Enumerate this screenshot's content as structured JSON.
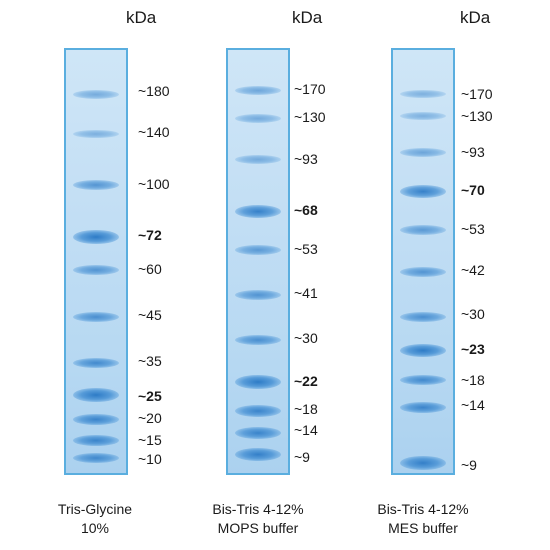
{
  "panels": [
    {
      "unit": "kDa",
      "caption_line1": "Tris-Glycine",
      "caption_line2": "10%",
      "markers": [
        {
          "label": "~180",
          "bold": false
        },
        {
          "label": "~140",
          "bold": false
        },
        {
          "label": "~100",
          "bold": false
        },
        {
          "label": "~72",
          "bold": true
        },
        {
          "label": "~60",
          "bold": false
        },
        {
          "label": "~45",
          "bold": false
        },
        {
          "label": "~35",
          "bold": false
        },
        {
          "label": "~25",
          "bold": true
        },
        {
          "label": "~20",
          "bold": false
        },
        {
          "label": "~15",
          "bold": false
        },
        {
          "label": "~10",
          "bold": false
        }
      ]
    },
    {
      "unit": "kDa",
      "caption_line1": "Bis-Tris 4-12%",
      "caption_line2": "MOPS buffer",
      "markers": [
        {
          "label": "~170",
          "bold": false
        },
        {
          "label": "~130",
          "bold": false
        },
        {
          "label": "~93",
          "bold": false
        },
        {
          "label": "~68",
          "bold": true
        },
        {
          "label": "~53",
          "bold": false
        },
        {
          "label": "~41",
          "bold": false
        },
        {
          "label": "~30",
          "bold": false
        },
        {
          "label": "~22",
          "bold": true
        },
        {
          "label": "~18",
          "bold": false
        },
        {
          "label": "~14",
          "bold": false
        },
        {
          "label": "~9",
          "bold": false
        }
      ]
    },
    {
      "unit": "kDa",
      "caption_line1": "Bis-Tris 4-12%",
      "caption_line2": "MES buffer",
      "markers": [
        {
          "label": "~170",
          "bold": false
        },
        {
          "label": "~130",
          "bold": false
        },
        {
          "label": "~93",
          "bold": false
        },
        {
          "label": "~70",
          "bold": true
        },
        {
          "label": "~53",
          "bold": false
        },
        {
          "label": "~42",
          "bold": false
        },
        {
          "label": "~30",
          "bold": false
        },
        {
          "label": "~23",
          "bold": true
        },
        {
          "label": "~18",
          "bold": false
        },
        {
          "label": "~14",
          "bold": false
        },
        {
          "label": "~9",
          "bold": false
        }
      ]
    }
  ]
}
